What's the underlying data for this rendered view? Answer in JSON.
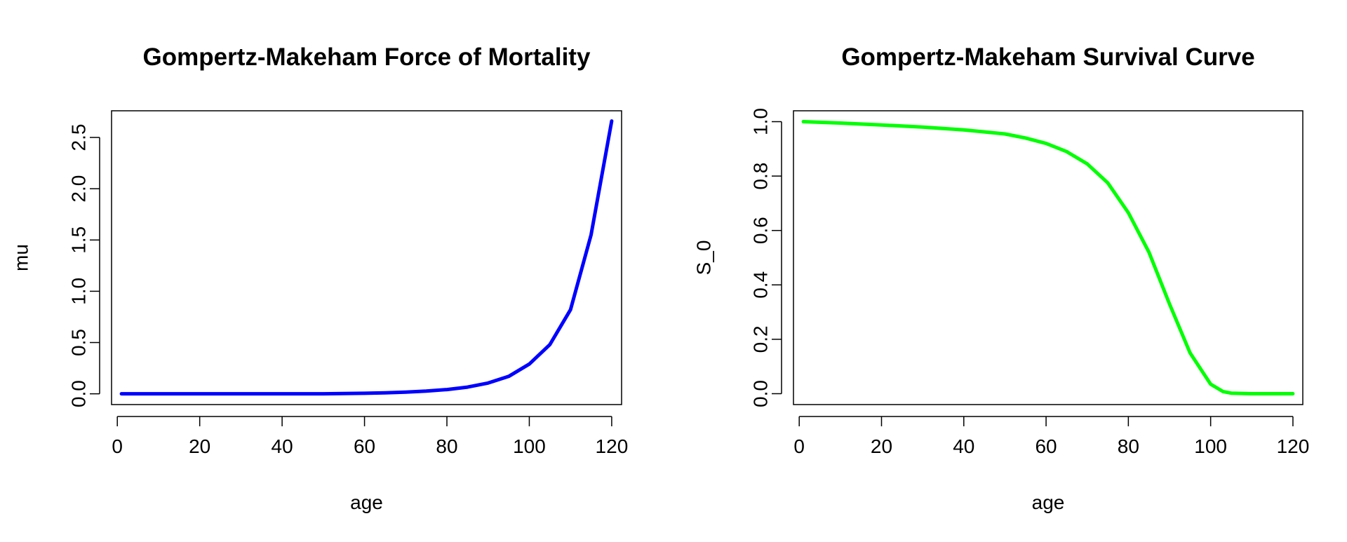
{
  "chart_data": [
    {
      "type": "line",
      "title": "Gompertz-Makeham Force of Mortality",
      "xlabel": "age",
      "ylabel": "mu",
      "xlim": [
        -1.4,
        122.4
      ],
      "ylim": [
        -0.105,
        2.76
      ],
      "x_ticks": [
        0,
        20,
        40,
        60,
        80,
        100,
        120
      ],
      "y_ticks": [
        0.0,
        0.5,
        1.0,
        1.5,
        2.0,
        2.5
      ],
      "x_tick_labels": [
        "0",
        "20",
        "40",
        "60",
        "80",
        "100",
        "120"
      ],
      "y_tick_labels": [
        "0.0",
        "0.5",
        "1.0",
        "1.5",
        "2.0",
        "2.5"
      ],
      "grid": false,
      "legend": "none",
      "series": [
        {
          "color": "#0000ff",
          "x": [
            1,
            10,
            20,
            30,
            40,
            50,
            60,
            65,
            70,
            75,
            80,
            85,
            90,
            95,
            100,
            105,
            110,
            115,
            120
          ],
          "y": [
            0.0,
            0.0,
            0.0,
            0.0,
            0.0,
            0.0,
            0.005,
            0.01,
            0.016,
            0.026,
            0.041,
            0.065,
            0.105,
            0.17,
            0.29,
            0.48,
            0.82,
            1.55,
            2.66
          ]
        }
      ]
    },
    {
      "type": "line",
      "title": "Gompertz-Makeham Survival Curve",
      "xlabel": "age",
      "ylabel": "S_0",
      "xlim": [
        -1.4,
        122.4
      ],
      "ylim": [
        -0.04,
        1.04
      ],
      "x_ticks": [
        0,
        20,
        40,
        60,
        80,
        100,
        120
      ],
      "y_ticks": [
        0.0,
        0.2,
        0.4,
        0.6,
        0.8,
        1.0
      ],
      "x_tick_labels": [
        "0",
        "20",
        "40",
        "60",
        "80",
        "100",
        "120"
      ],
      "y_tick_labels": [
        "0.0",
        "0.2",
        "0.4",
        "0.6",
        "0.8",
        "1.0"
      ],
      "grid": false,
      "legend": "none",
      "series": [
        {
          "color": "#00ff00",
          "x": [
            1,
            10,
            20,
            30,
            40,
            50,
            55,
            60,
            65,
            70,
            75,
            80,
            85,
            90,
            95,
            100,
            103,
            105,
            110,
            120
          ],
          "y": [
            1.0,
            0.995,
            0.988,
            0.98,
            0.97,
            0.955,
            0.94,
            0.92,
            0.89,
            0.845,
            0.775,
            0.665,
            0.52,
            0.33,
            0.15,
            0.035,
            0.008,
            0.002,
            0.0,
            0.0
          ]
        }
      ]
    }
  ]
}
